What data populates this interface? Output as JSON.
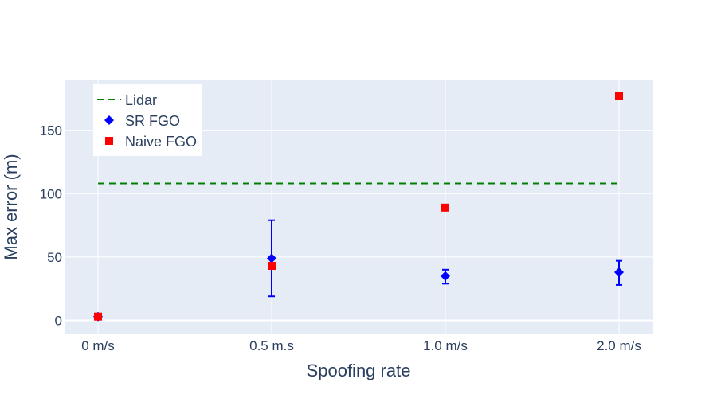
{
  "chart_data": {
    "type": "scatter",
    "categories": [
      "0 m/s",
      "0.5 m.s",
      "1.0 m/s",
      "2.0 m/s"
    ],
    "xlabel": "Spoofing rate",
    "ylabel": "Max error (m)",
    "ylim": [
      -11,
      190
    ],
    "yticks": [
      0,
      50,
      100,
      150
    ],
    "grid": true,
    "legend_position": "top-left",
    "plot_background": "#e5ecf6",
    "series": [
      {
        "name": "Lidar",
        "kind": "line",
        "dash": "dashed",
        "color": "#008000",
        "values": [
          108,
          108,
          108,
          108
        ]
      },
      {
        "name": "SR FGO",
        "kind": "markers",
        "marker": "diamond",
        "color": "#0000ff",
        "values": [
          3,
          49,
          35,
          38
        ],
        "error_low": [
          2,
          19,
          29,
          28
        ],
        "error_high": [
          4,
          79,
          40,
          47
        ]
      },
      {
        "name": "Naive FGO",
        "kind": "markers",
        "marker": "square",
        "color": "#ff0000",
        "values": [
          3,
          43,
          89,
          177
        ]
      }
    ]
  }
}
